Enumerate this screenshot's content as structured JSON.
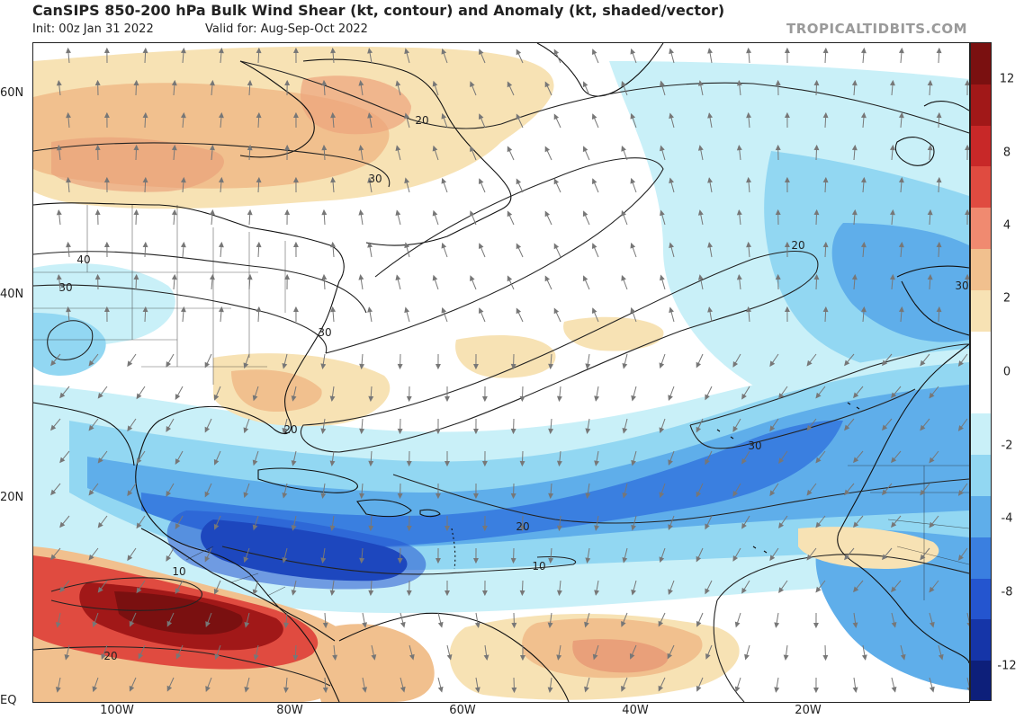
{
  "header": {
    "title": "CanSIPS 850-200 hPa Bulk Wind Shear (kt, contour) and Anomaly (kt, shaded/vector)",
    "init": "Init: 00z Jan 31 2022",
    "valid": "Valid for: Aug-Sep-Oct 2022",
    "watermark": "TROPICALTIDBITS.COM"
  },
  "axes": {
    "lat_labels": [
      "60N",
      "40N",
      "20N",
      "EQ"
    ],
    "lon_labels": [
      "100W",
      "80W",
      "60W",
      "40W",
      "20W"
    ]
  },
  "colorbar": {
    "ticks": [
      "12",
      "8",
      "4",
      "2",
      "0",
      "-2",
      "-4",
      "-8",
      "-12"
    ],
    "colors": [
      "#7a1010",
      "#a11818",
      "#c82828",
      "#e04b40",
      "#f08a70",
      "#f1c08e",
      "#f7e2b4",
      "#ffffff",
      "#ffffff",
      "#c9f0f8",
      "#92d7f2",
      "#5faeea",
      "#3a7fe0",
      "#2455cf",
      "#1535a8",
      "#0d1f7a"
    ]
  },
  "contour_labels": [
    "20",
    "30",
    "40",
    "30",
    "30",
    "20",
    "20",
    "30",
    "30",
    "20",
    "10",
    "10",
    "20"
  ],
  "map_colors": {
    "warm_light": "#f7e2b4",
    "warm_mid": "#f1c08e",
    "warm_strong": "#e04b40",
    "warm_deep": "#a11818",
    "cool_light": "#c9f0f8",
    "cool_mid": "#92d7f2",
    "cool_strong": "#5faeea",
    "cool_deep": "#3a7fe0",
    "cool_darker": "#2455cf",
    "cool_darkest": "#1535a8",
    "coast": "#111111",
    "contour": "#222222",
    "vector": "#777777"
  }
}
